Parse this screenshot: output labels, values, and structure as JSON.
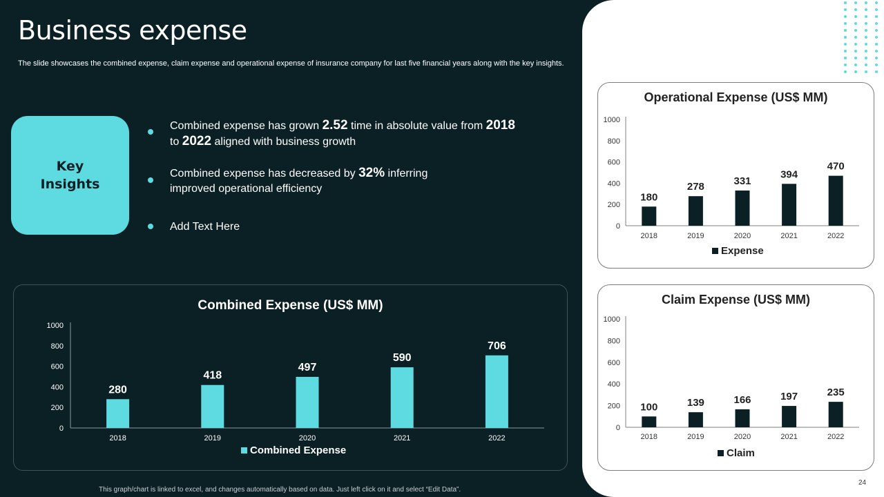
{
  "slide": {
    "title": "Business expense",
    "subtitle": "The slide showcases the combined expense, claim expense and operational expense of insurance company for last five financial years along with the key insights.",
    "footer": "This graph/chart is linked to excel, and changes automatically based on data. Just left click on it and select “Edit Data”.",
    "page_number": "24"
  },
  "key_insights": {
    "label_line1": "Key",
    "label_line2": "Insights",
    "items": [
      {
        "t1": "Combined expense has grown ",
        "b1": "2.52",
        "t2": " time in absolute value from ",
        "b2": "2018",
        "t3": "to ",
        "b3": "2022",
        "t4": " aligned with business growth"
      },
      {
        "t1": "Combined expense has decreased by ",
        "b1": "32%",
        "t2": " inferring",
        "t3": "improved operational efficiency"
      },
      {
        "t1": "Add Text Here"
      }
    ]
  },
  "colors": {
    "background": "#0b2025",
    "accent": "#5ddbe1",
    "dark_bar": "#0b2025",
    "panel": "#ffffff"
  },
  "chart_data": [
    {
      "id": "combined",
      "type": "bar",
      "title": "Combined Expense (US$ MM)",
      "categories": [
        "2018",
        "2019",
        "2020",
        "2021",
        "2022"
      ],
      "series": [
        {
          "name": "Combined Expense",
          "values": [
            280,
            418,
            497,
            590,
            706
          ]
        }
      ],
      "ylim": [
        0,
        1000
      ],
      "yticks": [
        0,
        200,
        400,
        600,
        800,
        1000
      ],
      "legend": "bottom",
      "grid": false
    },
    {
      "id": "operational",
      "type": "bar",
      "title": "Operational Expense (US$ MM)",
      "categories": [
        "2018",
        "2019",
        "2020",
        "2021",
        "2022"
      ],
      "series": [
        {
          "name": "Expense",
          "values": [
            180,
            278,
            331,
            394,
            470
          ]
        }
      ],
      "ylim": [
        0,
        1000
      ],
      "yticks": [
        0,
        200,
        400,
        600,
        800,
        1000
      ],
      "legend": "bottom",
      "grid": false
    },
    {
      "id": "claim",
      "type": "bar",
      "title": "Claim Expense (US$ MM)",
      "categories": [
        "2018",
        "2019",
        "2020",
        "2021",
        "2022"
      ],
      "series": [
        {
          "name": "Claim",
          "values": [
            100,
            139,
            166,
            197,
            235
          ]
        }
      ],
      "ylim": [
        0,
        1000
      ],
      "yticks": [
        0,
        200,
        400,
        600,
        800,
        1000
      ],
      "legend": "bottom",
      "grid": false
    }
  ]
}
